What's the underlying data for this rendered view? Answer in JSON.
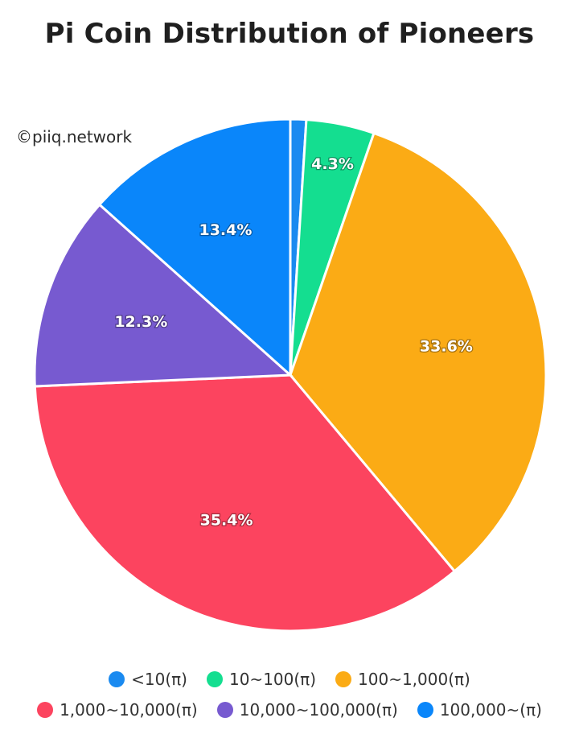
{
  "watermark": "©piiq.network",
  "chart_data": {
    "type": "pie",
    "title": "Pi Coin Distribution of Pioneers",
    "legend_position": "bottom",
    "categories": [
      "<10(π)",
      "10~100(π)",
      "100~1,000(π)",
      "1,000~10,000(π)",
      "10,000~100,000(π)",
      "100,000~(π)"
    ],
    "values": [
      1.0,
      4.3,
      33.6,
      35.4,
      12.3,
      13.4
    ],
    "data_labels": [
      "",
      "4.3%",
      "33.6%",
      "35.4%",
      "12.3%",
      "13.4%"
    ],
    "colors": [
      "#1a8af0",
      "#14de90",
      "#fbab15",
      "#fc445f",
      "#775ad0",
      "#0a86fa"
    ],
    "start_angle": "12 o'clock",
    "direction": "clockwise"
  }
}
